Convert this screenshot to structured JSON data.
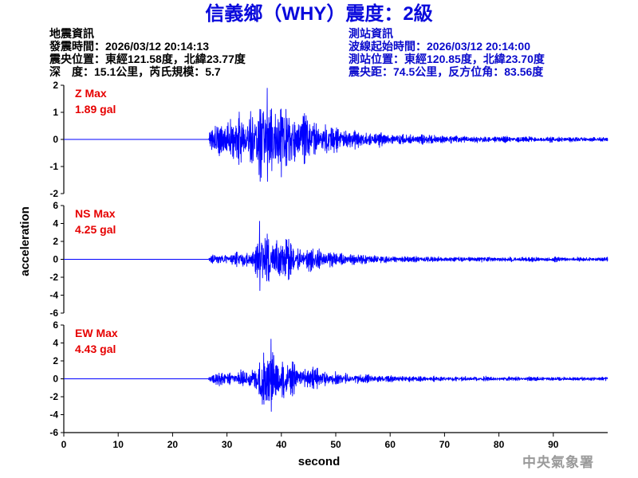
{
  "title": "信義鄉（WHY）震度：2級",
  "earthquake_info": {
    "heading": "地震資訊",
    "origin_time": "發震時間：2026/03/12 20:14:13",
    "epicenter": "震央位置：東經121.58度，北緯23.77度",
    "depth_magnitude": "深　度：15.1公里，芮氏規模：5.7"
  },
  "station_info": {
    "heading": "測站資訊",
    "waveform_start": "波線起始時間：2026/03/12 20:14:00",
    "location": "測站位置：東經120.85度，北緯23.70度",
    "distance_azimuth": "震央距：74.5公里，反方位角：83.56度"
  },
  "footer": "中央氣象署",
  "colors": {
    "title": "#0a0adc",
    "station_info": "#0a0acc",
    "trace": "#0000ff",
    "max_label": "#e60000",
    "footer": "#9a9a9a",
    "axes": "#000000"
  },
  "chart_data": {
    "type": "line",
    "xlabel": "second",
    "ylabel": "acceleration",
    "xlim": [
      0,
      100
    ],
    "xticks": [
      0,
      10,
      20,
      30,
      40,
      50,
      60,
      70,
      80,
      90
    ],
    "grid": false,
    "panels": [
      {
        "label": "Z Max",
        "max_text": "1.89 gal",
        "ylim": [
          -2,
          2
        ],
        "yticks": [
          2,
          1,
          0,
          -1,
          -2
        ],
        "peak": {
          "t": 37.4,
          "value": 1.89
        },
        "amplitude_envelope": [
          [
            0,
            0
          ],
          [
            26.6,
            0
          ],
          [
            26.8,
            0.35
          ],
          [
            27.5,
            0.7
          ],
          [
            29,
            0.9
          ],
          [
            31,
            0.95
          ],
          [
            32.5,
            1.2
          ],
          [
            34.5,
            1.45
          ],
          [
            36,
            1.65
          ],
          [
            37,
            1.75
          ],
          [
            39,
            1.6
          ],
          [
            41,
            1.45
          ],
          [
            43,
            1.2
          ],
          [
            45,
            0.95
          ],
          [
            47,
            0.75
          ],
          [
            50,
            0.55
          ],
          [
            53,
            0.45
          ],
          [
            56,
            0.35
          ],
          [
            60,
            0.28
          ],
          [
            64,
            0.22
          ],
          [
            67,
            0.24
          ],
          [
            70,
            0.18
          ],
          [
            78,
            0.14
          ],
          [
            100,
            0.1
          ]
        ]
      },
      {
        "label": "NS Max",
        "max_text": "4.25 gal",
        "ylim": [
          -6,
          6
        ],
        "yticks": [
          6,
          4,
          2,
          0,
          -2,
          -4,
          -6
        ],
        "peak": {
          "t": 36.0,
          "value": 4.25
        },
        "amplitude_envelope": [
          [
            0,
            0
          ],
          [
            26.6,
            0
          ],
          [
            26.8,
            0.5
          ],
          [
            28,
            0.7
          ],
          [
            30,
            0.75
          ],
          [
            32,
            0.95
          ],
          [
            34,
            1.1
          ],
          [
            35,
            1.6
          ],
          [
            35.7,
            2.6
          ],
          [
            36.5,
            3.5
          ],
          [
            37.5,
            3.2
          ],
          [
            39,
            3.3
          ],
          [
            40.5,
            2.8
          ],
          [
            42,
            2.0
          ],
          [
            43.5,
            1.6
          ],
          [
            45,
            1.5
          ],
          [
            46.5,
            1.7
          ],
          [
            48,
            1.2
          ],
          [
            50,
            1.0
          ],
          [
            53,
            0.8
          ],
          [
            56,
            0.65
          ],
          [
            60,
            0.5
          ],
          [
            65,
            0.42
          ],
          [
            75,
            0.35
          ],
          [
            100,
            0.28
          ]
        ]
      },
      {
        "label": "EW Max",
        "max_text": "4.43 gal",
        "ylim": [
          -6,
          6
        ],
        "yticks": [
          6,
          4,
          2,
          0,
          -2,
          -4,
          -6
        ],
        "peak": {
          "t": 38.1,
          "value": 4.43
        },
        "amplitude_envelope": [
          [
            0,
            0
          ],
          [
            26.6,
            0
          ],
          [
            26.8,
            0.5
          ],
          [
            28,
            0.8
          ],
          [
            30,
            0.9
          ],
          [
            32,
            1.05
          ],
          [
            34,
            1.1
          ],
          [
            35,
            1.8
          ],
          [
            36,
            3.6
          ],
          [
            37,
            3.3
          ],
          [
            38.5,
            3.5
          ],
          [
            39.5,
            3.1
          ],
          [
            41,
            2.5
          ],
          [
            42.5,
            1.9
          ],
          [
            44,
            1.5
          ],
          [
            46,
            1.6
          ],
          [
            47.5,
            1.3
          ],
          [
            50,
            0.95
          ],
          [
            53,
            0.7
          ],
          [
            56,
            0.55
          ],
          [
            60,
            0.45
          ],
          [
            65,
            0.38
          ],
          [
            75,
            0.32
          ],
          [
            100,
            0.26
          ]
        ]
      }
    ]
  }
}
